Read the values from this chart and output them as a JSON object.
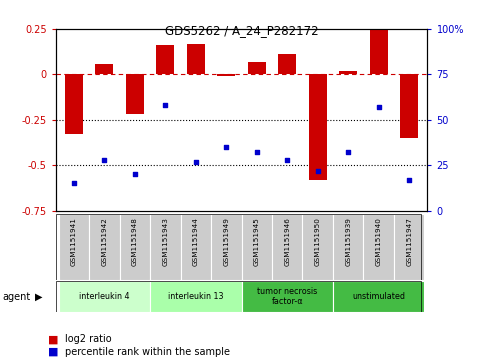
{
  "title": "GDS5262 / A_24_P282172",
  "samples": [
    "GSM1151941",
    "GSM1151942",
    "GSM1151948",
    "GSM1151943",
    "GSM1151944",
    "GSM1151949",
    "GSM1151945",
    "GSM1151946",
    "GSM1151950",
    "GSM1151939",
    "GSM1151940",
    "GSM1151947"
  ],
  "log2_ratio": [
    -0.33,
    0.055,
    -0.22,
    0.16,
    0.17,
    -0.01,
    0.07,
    0.11,
    -0.58,
    0.02,
    0.25,
    -0.35
  ],
  "percentile": [
    15,
    28,
    20,
    58,
    27,
    35,
    32,
    28,
    22,
    32,
    57,
    17
  ],
  "bar_color": "#cc0000",
  "dot_color": "#0000cc",
  "ylim_left": [
    -0.75,
    0.25
  ],
  "ylim_right": [
    0,
    100
  ],
  "yticks_left": [
    0.25,
    0.0,
    -0.25,
    -0.5,
    -0.75
  ],
  "ytick_labels_left": [
    "0.25",
    "0",
    "-0.25",
    "-0.5",
    "-0.75"
  ],
  "yticks_right": [
    100,
    75,
    50,
    25,
    0
  ],
  "ytick_labels_right": [
    "100%",
    "75",
    "50",
    "25",
    "0"
  ],
  "agent_groups": [
    {
      "label": "interleukin 4",
      "start": 0,
      "end": 3,
      "color": "#ccffcc"
    },
    {
      "label": "interleukin 13",
      "start": 3,
      "end": 6,
      "color": "#aaffaa"
    },
    {
      "label": "tumor necrosis\nfactor-α",
      "start": 6,
      "end": 9,
      "color": "#44bb44"
    },
    {
      "label": "unstimulated",
      "start": 9,
      "end": 12,
      "color": "#44bb44"
    }
  ],
  "legend_red_label": "log2 ratio",
  "legend_blue_label": "percentile rank within the sample"
}
